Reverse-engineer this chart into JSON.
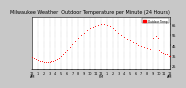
{
  "title": "Milwaukee Weather  Outdoor Temperature per Minute (24 Hours)",
  "bg_color": "#c8c8c8",
  "plot_bg_color": "#ffffff",
  "line_color": "#ff0000",
  "grid_color": "#999999",
  "x_min": 0,
  "x_max": 1440,
  "y_min": 22,
  "y_max": 72,
  "y_ticks": [
    25,
    35,
    45,
    55,
    65
  ],
  "legend_label": "Outdoor Temp",
  "legend_color": "#ff0000",
  "title_fontsize": 3.5,
  "tick_fontsize": 2.5,
  "data_x": [
    0,
    20,
    40,
    60,
    80,
    100,
    120,
    140,
    160,
    180,
    200,
    220,
    240,
    260,
    280,
    300,
    320,
    340,
    360,
    390,
    420,
    450,
    480,
    510,
    540,
    570,
    600,
    630,
    660,
    690,
    720,
    750,
    780,
    810,
    840,
    870,
    900,
    930,
    960,
    990,
    1020,
    1050,
    1080,
    1110,
    1140,
    1170,
    1200,
    1230,
    1260,
    1290,
    1310,
    1330,
    1350,
    1370,
    1390,
    1410,
    1430,
    1440
  ],
  "data_y": [
    34,
    33,
    32,
    31,
    30,
    30,
    29,
    29,
    29,
    29,
    30,
    30,
    31,
    32,
    33,
    35,
    36,
    38,
    40,
    43,
    46,
    49,
    52,
    55,
    57,
    59,
    61,
    62,
    63,
    64,
    65,
    65,
    64,
    63,
    61,
    59,
    57,
    55,
    53,
    51,
    50,
    48,
    47,
    45,
    44,
    43,
    42,
    41,
    52,
    54,
    52,
    40,
    38,
    37,
    36,
    36,
    35,
    35
  ],
  "x_tick_positions": [
    0,
    60,
    120,
    180,
    240,
    300,
    360,
    420,
    480,
    540,
    600,
    660,
    720,
    780,
    840,
    900,
    960,
    1020,
    1080,
    1140,
    1200,
    1260,
    1320,
    1380,
    1440
  ],
  "x_tick_labels": [
    "12\nAM",
    "1",
    "2",
    "3",
    "4",
    "5",
    "6",
    "7",
    "8",
    "9",
    "10",
    "11",
    "12\nPM",
    "1",
    "2",
    "3",
    "4",
    "5",
    "6",
    "7",
    "8",
    "9",
    "10",
    "11",
    "12\nAM"
  ]
}
